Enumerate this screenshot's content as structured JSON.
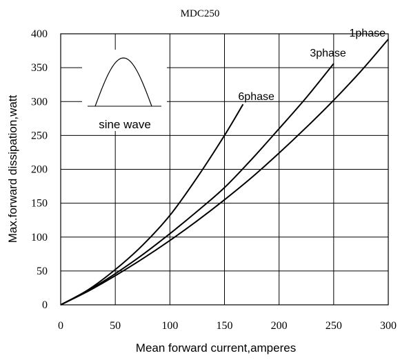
{
  "chart_data": {
    "type": "line",
    "title": "MDC250",
    "xlabel": "Mean forward current,amperes",
    "ylabel": "Max.forward dissipation,watt",
    "xlim": [
      0,
      300
    ],
    "ylim": [
      0,
      400
    ],
    "xticks": [
      0,
      50,
      100,
      150,
      200,
      250,
      300
    ],
    "yticks": [
      0,
      50,
      100,
      150,
      200,
      250,
      300,
      350,
      400
    ],
    "grid": true,
    "series": [
      {
        "name": "6phase",
        "x": [
          0,
          25,
          50,
          75,
          100,
          125,
          150,
          167
        ],
        "y": [
          0,
          22,
          52,
          88,
          132,
          188,
          250,
          296
        ]
      },
      {
        "name": "3phase",
        "x": [
          0,
          25,
          50,
          75,
          100,
          125,
          150,
          175,
          200,
          225,
          250
        ],
        "y": [
          0,
          21,
          46,
          74,
          105,
          138,
          173,
          215,
          260,
          306,
          356
        ]
      },
      {
        "name": "1phase",
        "x": [
          0,
          25,
          50,
          75,
          100,
          125,
          150,
          175,
          200,
          225,
          250,
          275,
          300
        ],
        "y": [
          0,
          20,
          43,
          68,
          95,
          124,
          155,
          188,
          224,
          262,
          302,
          345,
          392
        ]
      }
    ],
    "inset_label": "sine wave",
    "colors": {
      "line": "#000000",
      "grid": "#000000",
      "background": "#ffffff"
    }
  }
}
